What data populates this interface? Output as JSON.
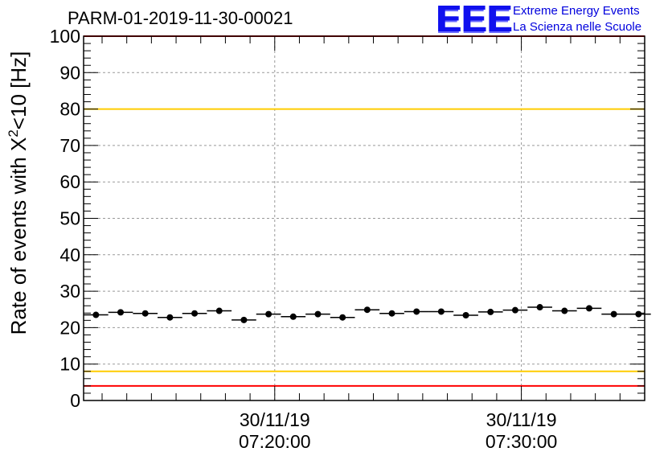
{
  "header": {
    "title": "PARM-01-2019-11-30-00021",
    "logo_text": "EEE",
    "logo_line1": "Extreme Energy Events",
    "logo_line2": "La Scienza nelle Scuole",
    "logo_color": "#1010ee"
  },
  "chart_data": {
    "type": "scatter",
    "ylabel_main": "Rate of events with X",
    "ylabel_sup": "2",
    "ylabel_tail": "<10 [Hz]",
    "ylim": [
      0,
      100
    ],
    "yticks": [
      0,
      10,
      20,
      30,
      40,
      50,
      60,
      70,
      80,
      90,
      100
    ],
    "xlim_minutes": [
      0,
      22.75
    ],
    "xticks": [
      {
        "minute": 7.75,
        "line1": "30/11/19",
        "line2": "07:20:00"
      },
      {
        "minute": 17.75,
        "line1": "30/11/19",
        "line2": "07:30:00"
      }
    ],
    "grid": true,
    "bin_width_minutes": 1.0,
    "series": [
      {
        "x_minutes": [
          0.5,
          1.5,
          2.5,
          3.5,
          4.5,
          5.5,
          6.5,
          7.5,
          8.5,
          9.5,
          10.5,
          11.5,
          12.5,
          13.5,
          14.5,
          15.5,
          16.5,
          17.5,
          18.5,
          19.5,
          20.5,
          21.5,
          22.5
        ],
        "values": [
          23.5,
          24.2,
          23.9,
          22.8,
          23.9,
          24.6,
          22.1,
          23.7,
          23.0,
          23.7,
          22.8,
          24.9,
          23.9,
          24.4,
          24.4,
          23.4,
          24.3,
          24.8,
          25.6,
          24.6,
          25.3,
          23.7,
          23.7
        ],
        "color": "#000000"
      }
    ],
    "reference_lines": [
      {
        "value": 100,
        "color": "#ff0000"
      },
      {
        "value": 80,
        "color": "#ffcc00"
      },
      {
        "value": 8,
        "color": "#ffcc00"
      },
      {
        "value": 4,
        "color": "#ff0000"
      }
    ]
  }
}
